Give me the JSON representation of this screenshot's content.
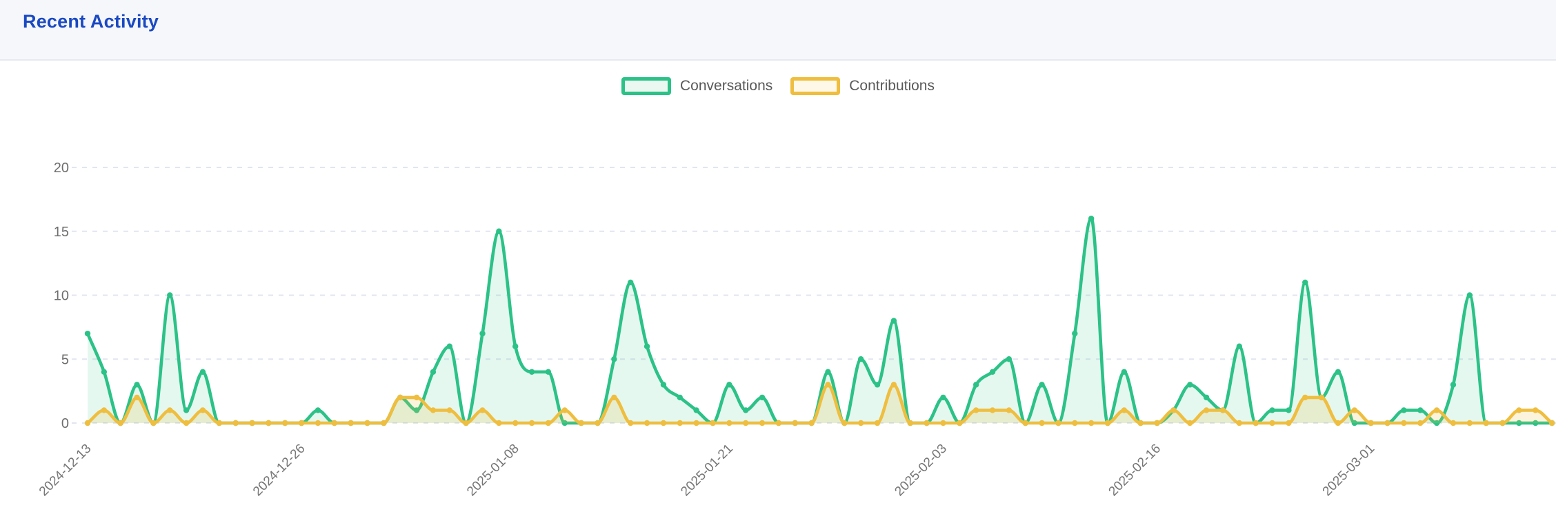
{
  "header": {
    "title": "Recent Activity"
  },
  "theme": {
    "title_color": "#1a49c2",
    "header_bg": "#f6f7fb",
    "divider_color": "#e7e9f1",
    "chart_bg": "#ffffff",
    "grid_color": "#e1e5ef",
    "y_tick_color": "#6e6e6e",
    "x_tick_color": "#757575",
    "legend_text_color": "#595959",
    "conversations_color": "#2cc287",
    "conversations_fill": "rgba(44,194,135,0.12)",
    "contributions_color": "#efbe3f",
    "contributions_fill": "rgba(239,190,63,0.18)"
  },
  "chart_data": {
    "type": "area",
    "smooth": true,
    "grid": true,
    "legend_position": "top-center",
    "title": "",
    "xlabel": "",
    "ylabel": "",
    "ylim": [
      0,
      20
    ],
    "y_ticks": [
      0,
      5,
      10,
      15,
      20
    ],
    "x_is_daily_dates": true,
    "x_start_date": "2024-12-13",
    "x_tick_marks": [
      {
        "index": 0,
        "label": "2024-12-13"
      },
      {
        "index": 13,
        "label": "2024-12-26"
      },
      {
        "index": 26,
        "label": "2025-01-08"
      },
      {
        "index": 39,
        "label": "2025-01-21"
      },
      {
        "index": 52,
        "label": "2025-02-03"
      },
      {
        "index": 65,
        "label": "2025-02-16"
      },
      {
        "index": 78,
        "label": "2025-03-01"
      }
    ],
    "series": [
      {
        "name": "Conversations",
        "values": [
          7,
          4,
          0,
          3,
          0,
          10,
          1,
          4,
          0,
          0,
          0,
          0,
          0,
          0,
          1,
          0,
          0,
          0,
          0,
          2,
          1,
          4,
          6,
          0,
          7,
          15,
          6,
          4,
          4,
          0,
          0,
          0,
          5,
          11,
          6,
          3,
          2,
          1,
          0,
          3,
          1,
          2,
          0,
          0,
          0,
          4,
          0,
          5,
          3,
          8,
          0,
          0,
          2,
          0,
          3,
          4,
          5,
          0,
          3,
          0,
          7,
          16,
          0,
          4,
          0,
          0,
          1,
          3,
          2,
          1,
          6,
          0,
          1,
          1,
          11,
          2,
          4,
          0,
          0,
          0,
          1,
          1,
          0,
          3,
          10,
          0,
          0,
          0,
          0,
          0
        ]
      },
      {
        "name": "Contributions",
        "values": [
          0,
          1,
          0,
          2,
          0,
          1,
          0,
          1,
          0,
          0,
          0,
          0,
          0,
          0,
          0,
          0,
          0,
          0,
          0,
          2,
          2,
          1,
          1,
          0,
          1,
          0,
          0,
          0,
          0,
          1,
          0,
          0,
          2,
          0,
          0,
          0,
          0,
          0,
          0,
          0,
          0,
          0,
          0,
          0,
          0,
          3,
          0,
          0,
          0,
          3,
          0,
          0,
          0,
          0,
          1,
          1,
          1,
          0,
          0,
          0,
          0,
          0,
          0,
          1,
          0,
          0,
          1,
          0,
          1,
          1,
          0,
          0,
          0,
          0,
          2,
          2,
          0,
          1,
          0,
          0,
          0,
          0,
          1,
          0,
          0,
          0,
          0,
          1,
          1,
          0
        ]
      }
    ]
  }
}
